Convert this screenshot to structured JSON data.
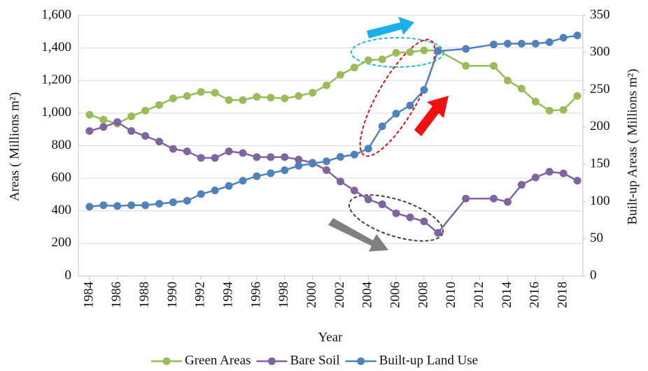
{
  "chart_data": {
    "type": "line",
    "x_label": "Year",
    "y_label": "Areas ( Millions m²)",
    "y2_label": "Built-up Areas ( Millions m²)",
    "x": [
      1984,
      1985,
      1986,
      1987,
      1988,
      1989,
      1990,
      1991,
      1992,
      1993,
      1994,
      1995,
      1996,
      1997,
      1998,
      1999,
      2000,
      2001,
      2002,
      2003,
      2004,
      2005,
      2006,
      2007,
      2008,
      2009,
      2011,
      2013,
      2014,
      2015,
      2016,
      2017,
      2018,
      2019
    ],
    "xlim": [
      1983.2,
      2019.4
    ],
    "xticks": [
      1984,
      1986,
      1988,
      1990,
      1992,
      1994,
      1996,
      1998,
      2000,
      2002,
      2004,
      2006,
      2008,
      2010,
      2012,
      2014,
      2016,
      2018
    ],
    "ylim": [
      0,
      1600
    ],
    "yticks": [
      0,
      200,
      400,
      600,
      800,
      {
        "value": 1000,
        "label": "1,000"
      },
      {
        "value": 1200,
        "label": "1,200"
      },
      {
        "value": 1400,
        "label": "1,400"
      },
      {
        "value": 1600,
        "label": "1,600"
      }
    ],
    "y2lim": [
      0,
      350
    ],
    "y2ticks": [
      0,
      50,
      100,
      150,
      200,
      250,
      300,
      350
    ],
    "grid": true,
    "legend": "bottom",
    "series": [
      {
        "name": "Green Areas",
        "color": "#9bbb59",
        "values": [
          990,
          960,
          935,
          980,
          1015,
          1050,
          1090,
          1105,
          1130,
          1125,
          1080,
          1080,
          1100,
          1095,
          1090,
          1105,
          1125,
          1170,
          1235,
          1280,
          1325,
          1330,
          1370,
          1375,
          1385,
          1385,
          1290,
          1290,
          1200,
          1150,
          1070,
          1015,
          1020,
          1105
        ]
      },
      {
        "name": "Bare Soil",
        "color": "#8064a2",
        "values": [
          890,
          915,
          945,
          890,
          860,
          825,
          780,
          765,
          725,
          725,
          765,
          755,
          730,
          730,
          730,
          715,
          695,
          650,
          580,
          525,
          470,
          440,
          385,
          360,
          335,
          265,
          475,
          475,
          455,
          560,
          605,
          640,
          630,
          585
        ]
      },
      {
        "name": "Built-up Land Use",
        "color": "#4f81bd",
        "axis": "y2",
        "values": [
          93,
          95,
          94,
          95,
          95,
          97,
          99,
          101,
          110,
          115,
          121,
          128,
          134,
          138,
          142,
          148,
          151,
          154,
          160,
          163,
          171,
          201,
          218,
          229,
          250,
          302,
          305,
          311,
          312,
          312,
          312,
          314,
          320,
          323
        ]
      }
    ]
  }
}
